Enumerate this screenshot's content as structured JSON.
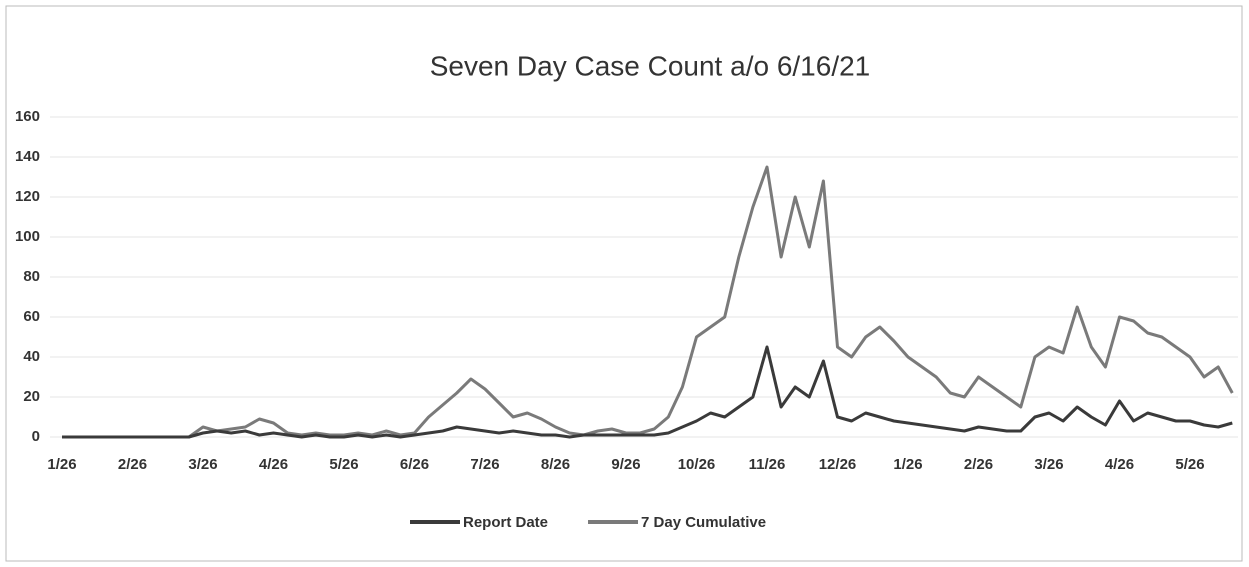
{
  "chart_data": {
    "type": "line",
    "title": "Seven Day Case Count a/o 6/16/21",
    "categories": [
      "1/26",
      null,
      null,
      null,
      null,
      "2/26",
      null,
      null,
      null,
      null,
      "3/26",
      null,
      null,
      null,
      null,
      "4/26",
      null,
      null,
      null,
      null,
      "5/26",
      null,
      null,
      null,
      null,
      "6/26",
      null,
      null,
      null,
      null,
      "7/26",
      null,
      null,
      null,
      null,
      "8/26",
      null,
      null,
      null,
      null,
      "9/26",
      null,
      null,
      null,
      null,
      "10/26",
      null,
      null,
      null,
      null,
      "11/26",
      null,
      null,
      null,
      null,
      "12/26",
      null,
      null,
      null,
      null,
      "1/26",
      null,
      null,
      null,
      null,
      "2/26",
      null,
      null,
      null,
      null,
      "3/26",
      null,
      null,
      null,
      null,
      "4/26",
      null,
      null,
      null,
      null,
      "5/26",
      null,
      null,
      null
    ],
    "series": [
      {
        "name": "Report Date",
        "color": "#3a3a3a",
        "values": [
          0,
          0,
          0,
          0,
          0,
          0,
          0,
          0,
          0,
          0,
          2,
          3,
          2,
          3,
          1,
          2,
          1,
          0,
          1,
          0,
          0,
          1,
          0,
          1,
          0,
          1,
          2,
          3,
          5,
          4,
          3,
          2,
          3,
          2,
          1,
          1,
          0,
          1,
          1,
          1,
          1,
          1,
          1,
          2,
          5,
          8,
          12,
          10,
          15,
          20,
          45,
          15,
          25,
          20,
          38,
          10,
          8,
          12,
          10,
          8,
          7,
          6,
          5,
          4,
          3,
          5,
          4,
          3,
          3,
          10,
          12,
          8,
          15,
          10,
          6,
          18,
          8,
          12,
          10,
          8,
          8,
          6,
          5,
          7
        ]
      },
      {
        "name": "7 Day Cumulative",
        "color": "#7a7a7a",
        "values": [
          0,
          0,
          0,
          0,
          0,
          0,
          0,
          0,
          0,
          0,
          5,
          3,
          4,
          5,
          9,
          7,
          2,
          1,
          2,
          1,
          1,
          2,
          1,
          3,
          1,
          2,
          10,
          16,
          22,
          29,
          24,
          17,
          10,
          12,
          9,
          5,
          2,
          1,
          3,
          4,
          2,
          2,
          4,
          10,
          25,
          50,
          55,
          60,
          90,
          115,
          135,
          90,
          120,
          95,
          128,
          45,
          40,
          50,
          55,
          48,
          40,
          35,
          30,
          22,
          20,
          30,
          25,
          20,
          15,
          40,
          45,
          42,
          65,
          45,
          35,
          60,
          58,
          52,
          50,
          45,
          40,
          30,
          35,
          22
        ]
      }
    ],
    "ylim": [
      0,
      160
    ],
    "yticks": [
      0,
      20,
      40,
      60,
      80,
      100,
      120,
      140,
      160
    ],
    "grid": true,
    "legend": "bottom"
  }
}
